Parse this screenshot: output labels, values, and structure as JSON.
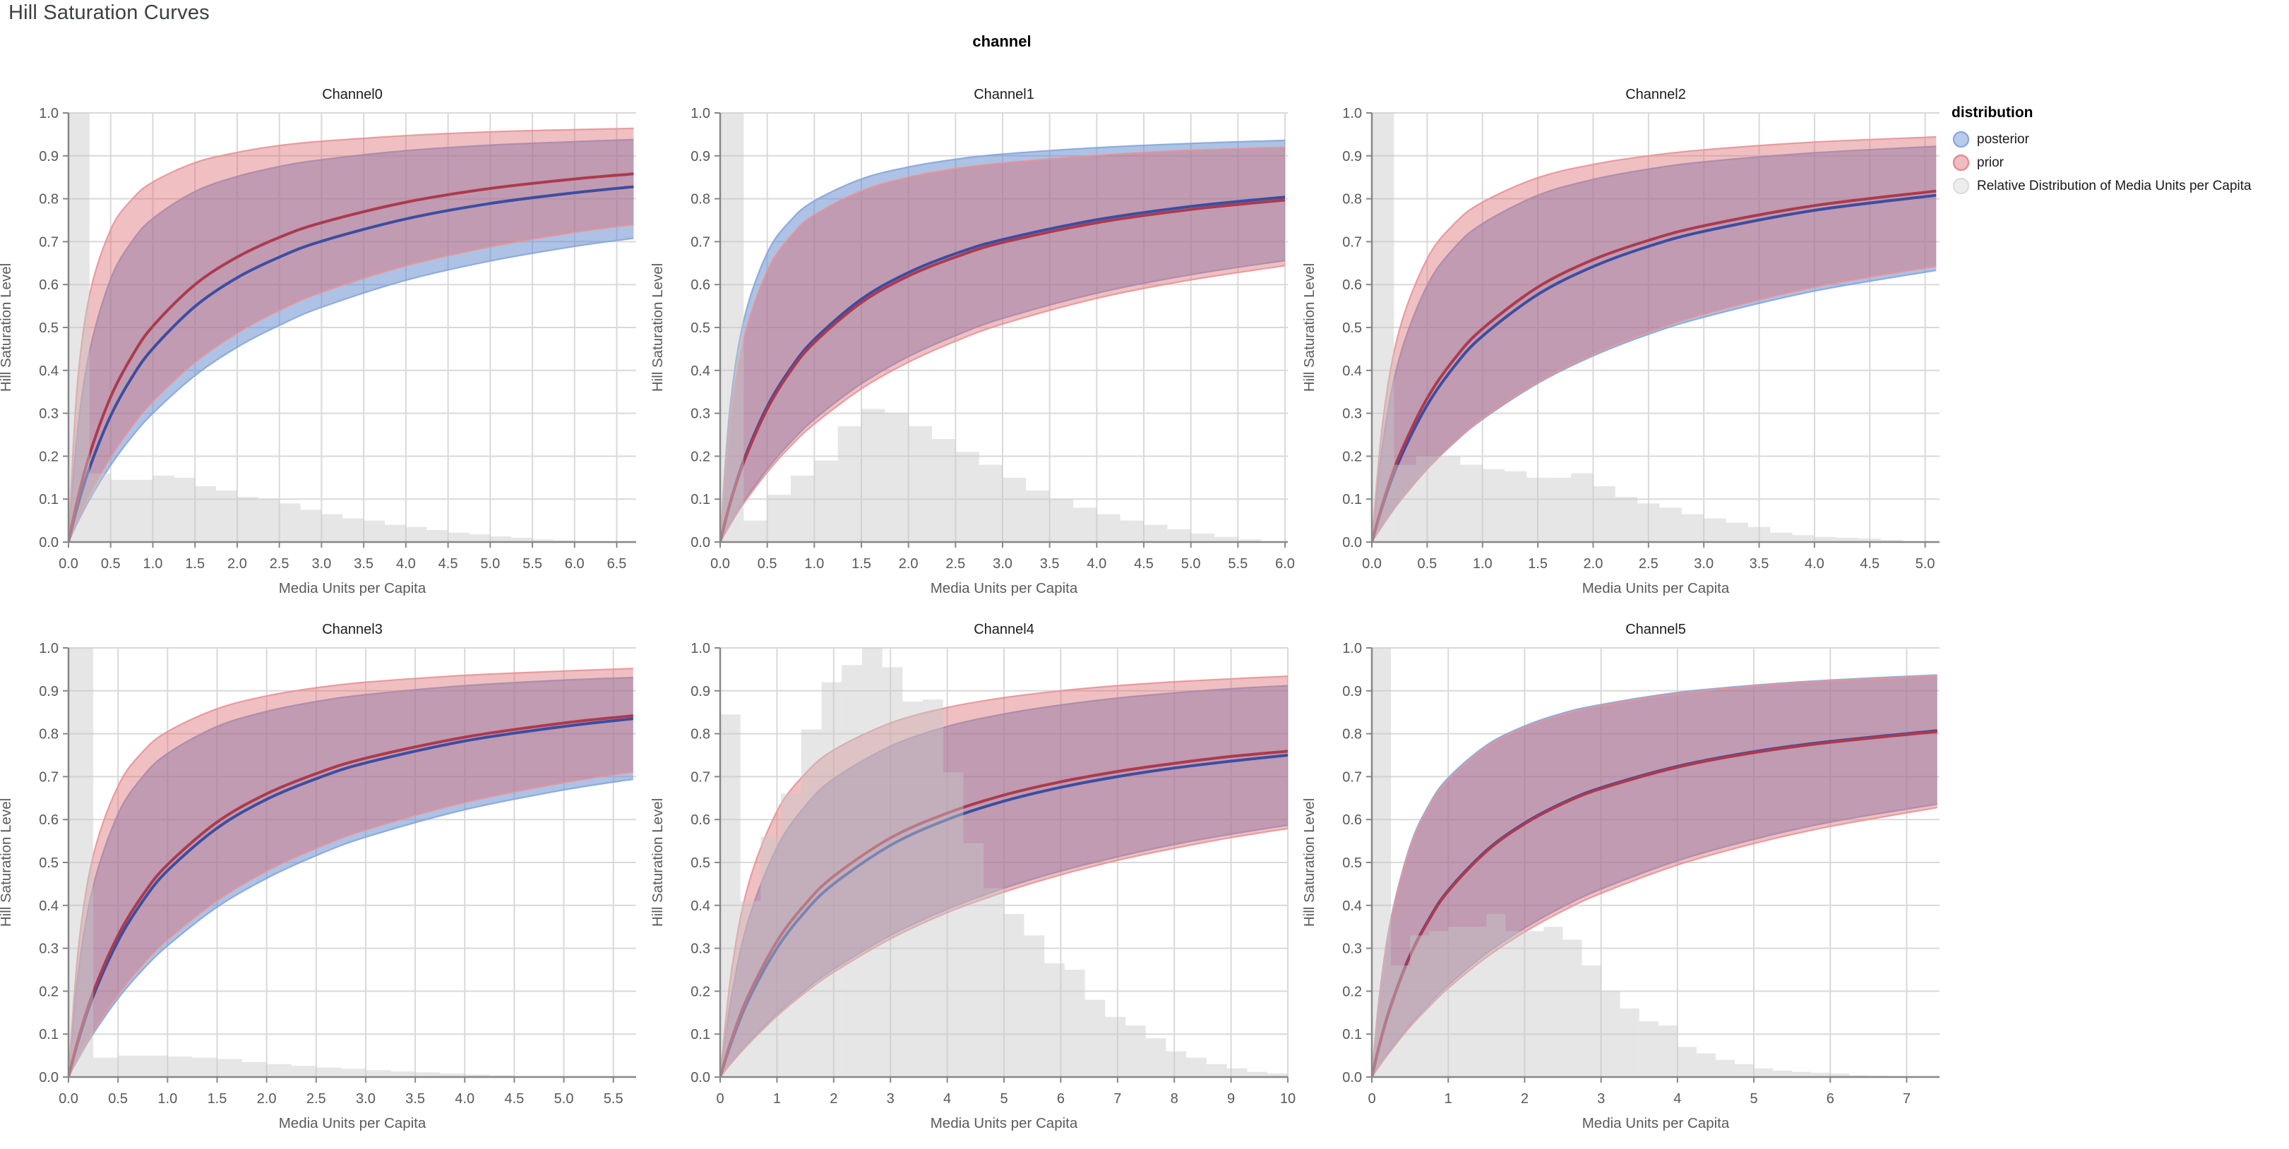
{
  "page": {
    "title": "Hill Saturation Curves",
    "facet_header": "channel"
  },
  "legend": {
    "title": "distribution",
    "items": [
      {
        "label": "posterior",
        "fill": "#b7cbec",
        "stroke": "#88a6da"
      },
      {
        "label": "prior",
        "fill": "#f0bcbf",
        "stroke": "#e0898f"
      },
      {
        "label": "Relative Distribution of Media Units per Capita",
        "fill": "#ededed",
        "stroke": "#dcdcdc"
      }
    ]
  },
  "colors": {
    "posterior_line": "#3d4da1",
    "prior_line": "#ac3a4e",
    "posterior_band_fill": "rgba(91,134,204,0.5)",
    "posterior_band_edge": "rgba(130,163,216,0.85)",
    "prior_band_fill": "rgba(219,102,108,0.42)",
    "prior_band_edge": "rgba(231,148,152,0.9)",
    "hist_fill": "rgba(200,200,200,0.45)",
    "grid": "#d9d9d9",
    "axis_domain": "#85878a",
    "tick_label": "#56585c",
    "axis_title": "#595b5f",
    "subplot_title": "#1b1c1e"
  },
  "chart_data": {
    "type": "line",
    "title": "Hill Saturation Curves",
    "facet_field": "channel",
    "xlabel": "Media Units per Capita",
    "ylabel": "Hill Saturation Level",
    "ylim": [
      0,
      1
    ],
    "y_ticks": [
      0.0,
      0.1,
      0.2,
      0.3,
      0.4,
      0.5,
      0.6,
      0.7,
      0.8,
      0.9,
      1.0
    ],
    "y_tick_labels": [
      "0.0",
      "0.1",
      "0.2",
      "0.3",
      "0.4",
      "0.5",
      "0.6",
      "0.7",
      "0.8",
      "0.9",
      "1.0"
    ],
    "grid": true,
    "legend_position": "right",
    "series_semantics": "mean line with 90% credible band for prior and posterior; gray bars = Relative Distribution of Media Units per Capita (first bin clipped at 1.0)",
    "channels": [
      {
        "title": "Channel0",
        "x_max": 6.73,
        "x_ticks": [
          0,
          0.5,
          1,
          1.5,
          2,
          2.5,
          3,
          3.5,
          4,
          4.5,
          5,
          5.5,
          6,
          6.5
        ],
        "x_tick_labels": [
          "0.0",
          "0.5",
          "1.0",
          "1.5",
          "2.0",
          "2.5",
          "3.0",
          "3.5",
          "4.0",
          "4.5",
          "5.0",
          "5.5",
          "6.0",
          "6.5"
        ],
        "x": [
          0,
          0.1,
          0.25,
          0.5,
          0.75,
          1,
          1.5,
          2,
          2.5,
          3,
          4,
          5,
          6,
          6.7
        ],
        "posterior": {
          "mean": [
            0,
            0.078,
            0.173,
            0.294,
            0.383,
            0.451,
            0.549,
            0.616,
            0.664,
            0.701,
            0.753,
            0.789,
            0.814,
            0.828
          ],
          "upper": [
            0,
            0.245,
            0.445,
            0.613,
            0.7,
            0.754,
            0.817,
            0.852,
            0.875,
            0.891,
            0.912,
            0.925,
            0.933,
            0.938
          ],
          "lower": [
            0,
            0.042,
            0.099,
            0.179,
            0.245,
            0.3,
            0.388,
            0.454,
            0.505,
            0.547,
            0.61,
            0.655,
            0.689,
            0.708
          ]
        },
        "prior": {
          "mean": [
            0,
            0.093,
            0.204,
            0.338,
            0.432,
            0.503,
            0.6,
            0.664,
            0.71,
            0.744,
            0.792,
            0.824,
            0.846,
            0.858
          ],
          "upper": [
            0,
            0.354,
            0.576,
            0.728,
            0.798,
            0.839,
            0.884,
            0.908,
            0.924,
            0.934,
            0.947,
            0.956,
            0.961,
            0.964
          ],
          "lower": [
            0,
            0.048,
            0.11,
            0.198,
            0.269,
            0.328,
            0.419,
            0.487,
            0.54,
            0.582,
            0.644,
            0.688,
            0.722,
            0.74
          ]
        },
        "histogram": {
          "bin_start": 0,
          "bin_width": 0.25,
          "heights": [
            1,
            0.16,
            0.145,
            0.145,
            0.155,
            0.15,
            0.13,
            0.12,
            0.105,
            0.1,
            0.09,
            0.075,
            0.065,
            0.055,
            0.05,
            0.04,
            0.035,
            0.028,
            0.022,
            0.018,
            0.013,
            0.01,
            0.006,
            0.004
          ]
        }
      },
      {
        "title": "Channel1",
        "x_max": 6.03,
        "x_ticks": [
          0,
          0.5,
          1,
          1.5,
          2,
          2.5,
          3,
          3.5,
          4,
          4.5,
          5,
          5.5,
          6
        ],
        "x_tick_labels": [
          "0.0",
          "0.5",
          "1.0",
          "1.5",
          "2.0",
          "2.5",
          "3.0",
          "3.5",
          "4.0",
          "4.5",
          "5.0",
          "5.5",
          "6.0"
        ],
        "x": [
          0,
          0.1,
          0.25,
          0.5,
          0.75,
          1,
          1.5,
          2,
          2.5,
          3,
          4,
          5,
          6
        ],
        "posterior": {
          "mean": [
            0,
            0.087,
            0.19,
            0.316,
            0.405,
            0.472,
            0.566,
            0.628,
            0.672,
            0.705,
            0.751,
            0.782,
            0.804
          ],
          "upper": [
            0,
            0.303,
            0.516,
            0.674,
            0.75,
            0.795,
            0.846,
            0.874,
            0.892,
            0.904,
            0.919,
            0.929,
            0.936
          ],
          "lower": [
            0,
            0.04,
            0.094,
            0.17,
            0.233,
            0.286,
            0.369,
            0.432,
            0.481,
            0.521,
            0.58,
            0.623,
            0.656
          ]
        },
        "prior": {
          "mean": [
            0,
            0.085,
            0.186,
            0.31,
            0.399,
            0.465,
            0.558,
            0.62,
            0.664,
            0.698,
            0.744,
            0.775,
            0.797
          ],
          "upper": [
            0,
            0.267,
            0.471,
            0.632,
            0.713,
            0.762,
            0.818,
            0.85,
            0.87,
            0.883,
            0.901,
            0.913,
            0.92
          ],
          "lower": [
            0,
            0.038,
            0.09,
            0.163,
            0.224,
            0.275,
            0.357,
            0.419,
            0.468,
            0.508,
            0.568,
            0.611,
            0.644
          ]
        },
        "histogram": {
          "bin_start": 0,
          "bin_width": 0.25,
          "heights": [
            1,
            0.05,
            0.11,
            0.155,
            0.19,
            0.27,
            0.31,
            0.3,
            0.27,
            0.24,
            0.21,
            0.18,
            0.15,
            0.12,
            0.1,
            0.08,
            0.065,
            0.05,
            0.04,
            0.03,
            0.02,
            0.012,
            0.006
          ]
        }
      },
      {
        "title": "Channel2",
        "x_max": 5.13,
        "x_ticks": [
          0,
          0.5,
          1,
          1.5,
          2,
          2.5,
          3,
          3.5,
          4,
          4.5,
          5
        ],
        "x_tick_labels": [
          "0.0",
          "0.5",
          "1.0",
          "1.5",
          "2.0",
          "2.5",
          "3.0",
          "3.5",
          "4.0",
          "4.5",
          "5.0"
        ],
        "x": [
          0,
          0.1,
          0.25,
          0.5,
          0.75,
          1,
          1.5,
          2,
          2.5,
          3,
          4,
          5.1
        ],
        "posterior": {
          "mean": [
            0,
            0.087,
            0.191,
            0.319,
            0.411,
            0.48,
            0.577,
            0.642,
            0.689,
            0.724,
            0.773,
            0.808
          ],
          "upper": [
            0,
            0.233,
            0.43,
            0.598,
            0.687,
            0.742,
            0.808,
            0.845,
            0.869,
            0.886,
            0.907,
            0.922
          ],
          "lower": [
            0,
            0.04,
            0.094,
            0.17,
            0.233,
            0.286,
            0.37,
            0.434,
            0.484,
            0.524,
            0.585,
            0.633
          ]
        },
        "prior": {
          "mean": [
            0,
            0.092,
            0.202,
            0.335,
            0.428,
            0.497,
            0.594,
            0.658,
            0.703,
            0.737,
            0.784,
            0.818
          ],
          "upper": [
            0,
            0.283,
            0.495,
            0.66,
            0.743,
            0.792,
            0.849,
            0.88,
            0.9,
            0.914,
            0.932,
            0.944
          ],
          "lower": [
            0,
            0.04,
            0.094,
            0.17,
            0.234,
            0.288,
            0.373,
            0.438,
            0.489,
            0.531,
            0.594,
            0.643
          ]
        },
        "histogram": {
          "bin_start": 0,
          "bin_width": 0.2,
          "heights": [
            1,
            0.18,
            0.2,
            0.2,
            0.18,
            0.17,
            0.165,
            0.15,
            0.15,
            0.16,
            0.13,
            0.105,
            0.09,
            0.08,
            0.065,
            0.055,
            0.045,
            0.035,
            0.022,
            0.016,
            0.012,
            0.01,
            0.008,
            0.005
          ]
        }
      },
      {
        "title": "Channel3",
        "x_max": 5.73,
        "x_ticks": [
          0,
          0.5,
          1,
          1.5,
          2,
          2.5,
          3,
          3.5,
          4,
          4.5,
          5,
          5.5
        ],
        "x_tick_labels": [
          "0.0",
          "0.5",
          "1.0",
          "1.5",
          "2.0",
          "2.5",
          "3.0",
          "3.5",
          "4.0",
          "4.5",
          "5.0",
          "5.5"
        ],
        "x": [
          0,
          0.1,
          0.25,
          0.5,
          0.75,
          1,
          1.5,
          2,
          2.5,
          3,
          4,
          5,
          5.7
        ],
        "posterior": {
          "mean": [
            0,
            0.085,
            0.189,
            0.317,
            0.41,
            0.481,
            0.58,
            0.647,
            0.695,
            0.732,
            0.783,
            0.817,
            0.835
          ],
          "upper": [
            0,
            0.245,
            0.445,
            0.613,
            0.7,
            0.754,
            0.817,
            0.852,
            0.875,
            0.891,
            0.912,
            0.925,
            0.931
          ],
          "lower": [
            0,
            0.043,
            0.101,
            0.183,
            0.25,
            0.306,
            0.396,
            0.463,
            0.516,
            0.559,
            0.623,
            0.669,
            0.694
          ]
        },
        "prior": {
          "mean": [
            0,
            0.09,
            0.198,
            0.33,
            0.424,
            0.495,
            0.594,
            0.66,
            0.707,
            0.743,
            0.792,
            0.825,
            0.842
          ],
          "upper": [
            0,
            0.3,
            0.516,
            0.678,
            0.758,
            0.805,
            0.858,
            0.888,
            0.907,
            0.92,
            0.936,
            0.946,
            0.952
          ],
          "lower": [
            0,
            0.046,
            0.107,
            0.192,
            0.262,
            0.32,
            0.411,
            0.48,
            0.533,
            0.576,
            0.64,
            0.686,
            0.711
          ]
        },
        "histogram": {
          "bin_start": 0,
          "bin_width": 0.25,
          "heights": [
            1,
            0.045,
            0.05,
            0.05,
            0.048,
            0.045,
            0.042,
            0.035,
            0.03,
            0.026,
            0.022,
            0.019,
            0.016,
            0.013,
            0.011,
            0.008,
            0.006,
            0.004
          ]
        }
      },
      {
        "title": "Channel4",
        "x_max": 10,
        "x_ticks": [
          0,
          1,
          2,
          3,
          4,
          5,
          6,
          7,
          8,
          9,
          10
        ],
        "x_tick_labels": [
          "0",
          "1",
          "2",
          "3",
          "4",
          "5",
          "6",
          "7",
          "8",
          "9",
          "10"
        ],
        "x": [
          0,
          0.2,
          0.5,
          1,
          1.5,
          2,
          3,
          4,
          5,
          6,
          7,
          8,
          9,
          10
        ],
        "posterior": {
          "mean": [
            0,
            0.082,
            0.18,
            0.3,
            0.386,
            0.45,
            0.54,
            0.6,
            0.643,
            0.675,
            0.7,
            0.72,
            0.736,
            0.75
          ],
          "upper": [
            0,
            0.189,
            0.367,
            0.535,
            0.632,
            0.695,
            0.771,
            0.817,
            0.846,
            0.867,
            0.883,
            0.895,
            0.905,
            0.912
          ],
          "lower": [
            0,
            0.034,
            0.08,
            0.147,
            0.203,
            0.251,
            0.33,
            0.391,
            0.44,
            0.48,
            0.513,
            0.542,
            0.566,
            0.587
          ]
        },
        "prior": {
          "mean": [
            0,
            0.088,
            0.191,
            0.316,
            0.403,
            0.468,
            0.557,
            0.615,
            0.657,
            0.688,
            0.712,
            0.731,
            0.747,
            0.759
          ],
          "upper": [
            0,
            0.248,
            0.45,
            0.619,
            0.707,
            0.762,
            0.825,
            0.861,
            0.884,
            0.9,
            0.912,
            0.921,
            0.928,
            0.934
          ],
          "lower": [
            0,
            0.033,
            0.077,
            0.142,
            0.197,
            0.244,
            0.322,
            0.383,
            0.431,
            0.471,
            0.505,
            0.533,
            0.558,
            0.579
          ]
        },
        "histogram": {
          "bin_start": 0,
          "bin_width": 0.357,
          "heights": [
            0.845,
            0.41,
            0.56,
            0.66,
            0.81,
            0.92,
            0.96,
            1.0,
            0.955,
            0.875,
            0.88,
            0.71,
            0.545,
            0.44,
            0.38,
            0.33,
            0.265,
            0.25,
            0.18,
            0.14,
            0.12,
            0.09,
            0.06,
            0.045,
            0.03,
            0.02,
            0.012,
            0.008
          ]
        }
      },
      {
        "title": "Channel5",
        "x_max": 7.43,
        "x_ticks": [
          0,
          1,
          2,
          3,
          4,
          5,
          6,
          7
        ],
        "x_tick_labels": [
          "0",
          "1",
          "2",
          "3",
          "4",
          "5",
          "6",
          "7"
        ],
        "x": [
          0,
          0.1,
          0.25,
          0.5,
          0.75,
          1,
          1.5,
          2,
          2.5,
          3,
          4,
          5,
          6,
          7.4
        ],
        "posterior": {
          "mean": [
            0,
            0.076,
            0.168,
            0.284,
            0.369,
            0.435,
            0.528,
            0.592,
            0.639,
            0.674,
            0.724,
            0.758,
            0.782,
            0.807
          ],
          "upper": [
            0,
            0.19,
            0.369,
            0.538,
            0.635,
            0.697,
            0.773,
            0.818,
            0.848,
            0.868,
            0.896,
            0.913,
            0.925,
            0.937
          ],
          "lower": [
            0,
            0.027,
            0.065,
            0.121,
            0.17,
            0.214,
            0.288,
            0.347,
            0.397,
            0.438,
            0.504,
            0.554,
            0.594,
            0.636
          ]
        },
        "prior": {
          "mean": [
            0,
            0.074,
            0.166,
            0.282,
            0.367,
            0.433,
            0.526,
            0.59,
            0.637,
            0.672,
            0.722,
            0.756,
            0.78,
            0.805
          ],
          "upper": [
            0,
            0.187,
            0.364,
            0.533,
            0.63,
            0.692,
            0.769,
            0.814,
            0.844,
            0.865,
            0.893,
            0.911,
            0.923,
            0.935
          ],
          "lower": [
            0,
            0.026,
            0.062,
            0.117,
            0.164,
            0.207,
            0.279,
            0.338,
            0.387,
            0.428,
            0.494,
            0.544,
            0.584,
            0.628
          ]
        },
        "histogram": {
          "bin_start": 0,
          "bin_width": 0.25,
          "heights": [
            1,
            0.26,
            0.33,
            0.34,
            0.35,
            0.35,
            0.38,
            0.34,
            0.34,
            0.35,
            0.32,
            0.26,
            0.2,
            0.16,
            0.13,
            0.12,
            0.07,
            0.055,
            0.04,
            0.03,
            0.02,
            0.015,
            0.012,
            0.01,
            0.008,
            0.004,
            0.003,
            0.002
          ]
        }
      }
    ]
  }
}
